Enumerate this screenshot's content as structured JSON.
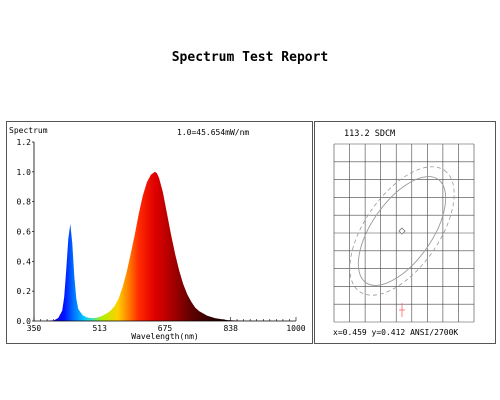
{
  "report": {
    "title": "Spectrum Test Report"
  },
  "chart_data": [
    {
      "type": "area",
      "ylabel": "Spectrum",
      "xlabel": "Wavelength(nm)",
      "annotation": "1.0=45.654mW/nm",
      "xlim": [
        350,
        1000
      ],
      "ylim": [
        0,
        1.2
      ],
      "x_ticks": [
        "350",
        "513",
        "675",
        "838",
        "1000"
      ],
      "y_ticks": [
        "0.0",
        "0.2",
        "0.4",
        "0.6",
        "0.8",
        "1.0",
        "1.2"
      ],
      "series": [
        {
          "x": [
            350,
            380,
            400,
            410,
            420,
            425,
            430,
            435,
            440,
            445,
            450,
            455,
            460,
            470,
            480,
            490,
            500,
            510,
            520,
            530,
            540,
            550,
            560,
            570,
            580,
            590,
            600,
            610,
            620,
            630,
            640,
            650,
            655,
            660,
            670,
            680,
            690,
            700,
            710,
            720,
            730,
            740,
            750,
            760,
            780,
            800,
            830,
            870,
            1000
          ],
          "values": [
            0,
            0,
            0.005,
            0.02,
            0.07,
            0.16,
            0.34,
            0.55,
            0.65,
            0.52,
            0.3,
            0.15,
            0.08,
            0.04,
            0.025,
            0.02,
            0.02,
            0.025,
            0.035,
            0.05,
            0.07,
            0.1,
            0.15,
            0.23,
            0.33,
            0.45,
            0.58,
            0.72,
            0.84,
            0.93,
            0.98,
            1.0,
            0.99,
            0.96,
            0.86,
            0.72,
            0.58,
            0.45,
            0.34,
            0.25,
            0.18,
            0.13,
            0.09,
            0.065,
            0.035,
            0.018,
            0.006,
            0.001,
            0
          ]
        }
      ]
    },
    {
      "type": "scatter",
      "title": "113.2 SDCM",
      "readout": "x=0.459 y=0.412 ANSI/2700K",
      "point": {
        "x": 0.459,
        "y": 0.412
      }
    }
  ]
}
